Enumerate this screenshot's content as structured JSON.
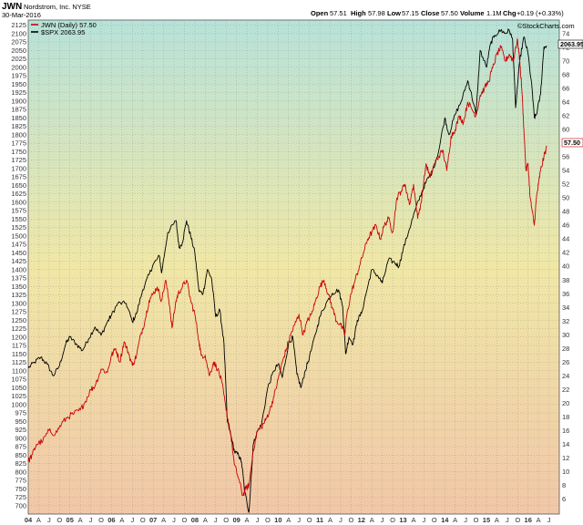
{
  "header": {
    "symbol": "JWN",
    "company": "Nordstrom, Inc.  NYSE",
    "date": "30-Mar-2016",
    "open_label": "Open",
    "open": "57.51",
    "high_label": "High",
    "high": "57.98",
    "low_label": "Low",
    "low": "57.15",
    "close_label": "Close",
    "close": "57.50",
    "volume_label": "Volume",
    "volume": "1.1M",
    "chg_label": "Chg",
    "chg": "+0.19 (+0.33%)",
    "brand": "©StockCharts.com"
  },
  "colors": {
    "bg_top": "#b7e2d9",
    "bg_mid": "#f0e7a6",
    "bg_bottom": "#f1c7a8",
    "jwn": "#cc0000",
    "spx": "#000000",
    "grid": "#8a8a8a"
  },
  "chart_data": {
    "type": "line",
    "legend": {
      "placement": "top-left",
      "entries": [
        "JWN (Daily) 57.50",
        "$SPX 2063.95"
      ]
    },
    "left_axis": {
      "label": "$SPX",
      "range": [
        675,
        2140
      ],
      "ticks": [
        700,
        725,
        750,
        775,
        800,
        825,
        850,
        875,
        900,
        925,
        950,
        975,
        1000,
        1025,
        1050,
        1075,
        1100,
        1125,
        1150,
        1175,
        1200,
        1225,
        1250,
        1275,
        1300,
        1325,
        1350,
        1375,
        1400,
        1425,
        1450,
        1475,
        1500,
        1525,
        1550,
        1575,
        1600,
        1625,
        1650,
        1675,
        1700,
        1725,
        1750,
        1775,
        1800,
        1825,
        1850,
        1875,
        1900,
        1925,
        1950,
        1975,
        2000,
        2025,
        2050,
        2075,
        2100,
        2125
      ]
    },
    "right_axis": {
      "label": "JWN",
      "range": [
        3.8,
        76
      ],
      "ticks": [
        6,
        8,
        10,
        12,
        14,
        16,
        18,
        20,
        22,
        24,
        26,
        28,
        30,
        32,
        34,
        36,
        38,
        40,
        42,
        44,
        46,
        48,
        50,
        52,
        54,
        56,
        58,
        60,
        62,
        64,
        66,
        68,
        70,
        72,
        74
      ]
    },
    "x_axis": {
      "range": [
        2004.0,
        2016.75
      ],
      "ticks": [
        {
          "t": 2004.0,
          "label": "04"
        },
        {
          "t": 2004.25,
          "label": "A"
        },
        {
          "t": 2004.5,
          "label": "J"
        },
        {
          "t": 2004.75,
          "label": "O"
        },
        {
          "t": 2005.0,
          "label": "05"
        },
        {
          "t": 2005.25,
          "label": "A"
        },
        {
          "t": 2005.5,
          "label": "J"
        },
        {
          "t": 2005.75,
          "label": "O"
        },
        {
          "t": 2006.0,
          "label": "06"
        },
        {
          "t": 2006.25,
          "label": "A"
        },
        {
          "t": 2006.5,
          "label": "J"
        },
        {
          "t": 2006.75,
          "label": "O"
        },
        {
          "t": 2007.0,
          "label": "07"
        },
        {
          "t": 2007.25,
          "label": "A"
        },
        {
          "t": 2007.5,
          "label": "J"
        },
        {
          "t": 2007.75,
          "label": "O"
        },
        {
          "t": 2008.0,
          "label": "08"
        },
        {
          "t": 2008.25,
          "label": "A"
        },
        {
          "t": 2008.5,
          "label": "J"
        },
        {
          "t": 2008.75,
          "label": "O"
        },
        {
          "t": 2009.0,
          "label": "09"
        },
        {
          "t": 2009.25,
          "label": "A"
        },
        {
          "t": 2009.5,
          "label": "J"
        },
        {
          "t": 2009.75,
          "label": "O"
        },
        {
          "t": 2010.0,
          "label": "10"
        },
        {
          "t": 2010.25,
          "label": "A"
        },
        {
          "t": 2010.5,
          "label": "J"
        },
        {
          "t": 2010.75,
          "label": "O"
        },
        {
          "t": 2011.0,
          "label": "11"
        },
        {
          "t": 2011.25,
          "label": "A"
        },
        {
          "t": 2011.5,
          "label": "J"
        },
        {
          "t": 2011.75,
          "label": "O"
        },
        {
          "t": 2012.0,
          "label": "12"
        },
        {
          "t": 2012.25,
          "label": "A"
        },
        {
          "t": 2012.5,
          "label": "J"
        },
        {
          "t": 2012.75,
          "label": "O"
        },
        {
          "t": 2013.0,
          "label": "13"
        },
        {
          "t": 2013.25,
          "label": "A"
        },
        {
          "t": 2013.5,
          "label": "J"
        },
        {
          "t": 2013.75,
          "label": "O"
        },
        {
          "t": 2014.0,
          "label": "14"
        },
        {
          "t": 2014.25,
          "label": "A"
        },
        {
          "t": 2014.5,
          "label": "J"
        },
        {
          "t": 2014.75,
          "label": "O"
        },
        {
          "t": 2015.0,
          "label": "15"
        },
        {
          "t": 2015.25,
          "label": "A"
        },
        {
          "t": 2015.5,
          "label": "J"
        },
        {
          "t": 2015.75,
          "label": "O"
        },
        {
          "t": 2016.0,
          "label": "16"
        },
        {
          "t": 2016.25,
          "label": "A"
        },
        {
          "t": 2016.5,
          "label": "J"
        }
      ]
    },
    "grid": true,
    "series": [
      {
        "name": "$SPX 2063.95",
        "axis": "left",
        "color": "#000000",
        "x": [
          2004.0,
          2004.15,
          2004.3,
          2004.45,
          2004.6,
          2004.75,
          2004.9,
          2005.0,
          2005.15,
          2005.3,
          2005.45,
          2005.6,
          2005.75,
          2005.9,
          2006.0,
          2006.15,
          2006.35,
          2006.5,
          2006.6,
          2006.75,
          2006.9,
          2007.0,
          2007.15,
          2007.2,
          2007.35,
          2007.55,
          2007.62,
          2007.7,
          2007.8,
          2007.9,
          2008.0,
          2008.1,
          2008.2,
          2008.3,
          2008.4,
          2008.5,
          2008.6,
          2008.7,
          2008.78,
          2008.88,
          2008.95,
          2009.05,
          2009.12,
          2009.2,
          2009.3,
          2009.4,
          2009.5,
          2009.6,
          2009.75,
          2009.9,
          2010.0,
          2010.1,
          2010.25,
          2010.35,
          2010.45,
          2010.55,
          2010.65,
          2010.75,
          2010.9,
          2011.0,
          2011.15,
          2011.3,
          2011.45,
          2011.55,
          2011.62,
          2011.7,
          2011.8,
          2011.9,
          2012.0,
          2012.15,
          2012.25,
          2012.4,
          2012.5,
          2012.65,
          2012.8,
          2012.9,
          2013.0,
          2013.15,
          2013.3,
          2013.45,
          2013.55,
          2013.7,
          2013.85,
          2014.0,
          2014.1,
          2014.25,
          2014.4,
          2014.55,
          2014.62,
          2014.75,
          2014.85,
          2015.0,
          2015.1,
          2015.2,
          2015.35,
          2015.45,
          2015.55,
          2015.63,
          2015.7,
          2015.8,
          2015.9,
          2016.0,
          2016.1,
          2016.15,
          2016.2,
          2016.3,
          2016.38,
          2016.45
        ],
        "y": [
          1108,
          1125,
          1140,
          1120,
          1085,
          1115,
          1180,
          1200,
          1180,
          1160,
          1195,
          1230,
          1205,
          1245,
          1265,
          1300,
          1300,
          1245,
          1270,
          1340,
          1385,
          1415,
          1440,
          1390,
          1510,
          1545,
          1465,
          1480,
          1545,
          1500,
          1450,
          1335,
          1330,
          1400,
          1375,
          1260,
          1280,
          1180,
          950,
          900,
          860,
          850,
          830,
          740,
          680,
          880,
          920,
          940,
          1050,
          1100,
          1120,
          1080,
          1180,
          1200,
          1090,
          1050,
          1100,
          1140,
          1210,
          1260,
          1300,
          1330,
          1340,
          1290,
          1150,
          1200,
          1180,
          1250,
          1270,
          1350,
          1400,
          1380,
          1360,
          1430,
          1420,
          1410,
          1460,
          1520,
          1580,
          1630,
          1660,
          1690,
          1750,
          1850,
          1800,
          1860,
          1900,
          1960,
          1930,
          1860,
          2050,
          2000,
          2070,
          2095,
          2110,
          2100,
          2110,
          2080,
          1880,
          2020,
          2090,
          2040,
          1930,
          1850,
          1860,
          1920,
          2060,
          2063
        ]
      },
      {
        "name": "JWN (Daily) 57.50",
        "axis": "right",
        "color": "#cc0000",
        "x": [
          2004.0,
          2004.1,
          2004.2,
          2004.35,
          2004.5,
          2004.65,
          2004.8,
          2004.95,
          2005.1,
          2005.25,
          2005.35,
          2005.5,
          2005.6,
          2005.75,
          2005.9,
          2006.0,
          2006.1,
          2006.2,
          2006.3,
          2006.4,
          2006.5,
          2006.6,
          2006.7,
          2006.8,
          2006.9,
          2007.0,
          2007.1,
          2007.2,
          2007.3,
          2007.4,
          2007.45,
          2007.55,
          2007.6,
          2007.7,
          2007.8,
          2007.9,
          2008.0,
          2008.1,
          2008.15,
          2008.25,
          2008.35,
          2008.45,
          2008.55,
          2008.65,
          2008.75,
          2008.85,
          2008.95,
          2009.05,
          2009.15,
          2009.22,
          2009.3,
          2009.4,
          2009.5,
          2009.6,
          2009.7,
          2009.8,
          2009.9,
          2010.0,
          2010.1,
          2010.2,
          2010.3,
          2010.4,
          2010.5,
          2010.6,
          2010.7,
          2010.8,
          2010.9,
          2011.0,
          2011.1,
          2011.2,
          2011.3,
          2011.4,
          2011.5,
          2011.6,
          2011.65,
          2011.75,
          2011.85,
          2011.95,
          2012.05,
          2012.15,
          2012.25,
          2012.35,
          2012.45,
          2012.55,
          2012.65,
          2012.75,
          2012.85,
          2012.95,
          2013.05,
          2013.15,
          2013.25,
          2013.35,
          2013.45,
          2013.55,
          2013.65,
          2013.75,
          2013.85,
          2013.95,
          2014.05,
          2014.15,
          2014.25,
          2014.35,
          2014.45,
          2014.55,
          2014.65,
          2014.75,
          2014.85,
          2014.95,
          2015.05,
          2015.15,
          2015.25,
          2015.35,
          2015.45,
          2015.55,
          2015.65,
          2015.7,
          2015.75,
          2015.8,
          2015.85,
          2015.9,
          2015.95,
          2016.0,
          2016.05,
          2016.1,
          2016.15,
          2016.2,
          2016.25,
          2016.3,
          2016.38,
          2016.45
        ],
        "y": [
          11.5,
          12.5,
          14,
          14.5,
          16,
          15.5,
          17,
          18,
          18.5,
          19,
          20,
          22,
          22.5,
          25,
          24.5,
          27,
          28,
          26,
          29,
          27.5,
          25.5,
          27,
          30,
          32,
          35,
          36,
          37,
          35,
          38,
          34,
          31,
          35,
          36,
          37,
          38,
          35,
          33,
          29,
          27,
          27,
          24,
          26,
          25,
          23,
          19,
          16,
          11,
          9,
          6.5,
          7.5,
          8,
          13,
          16,
          16.5,
          17.5,
          19,
          21,
          23.5,
          26,
          28,
          30,
          31.5,
          33,
          30,
          32,
          33,
          35,
          37,
          38,
          36,
          34,
          32,
          31.5,
          30,
          33,
          36,
          38,
          40,
          42,
          44,
          45,
          46,
          44,
          46,
          47,
          45,
          50,
          51,
          52,
          49,
          52,
          47,
          50,
          55,
          53,
          55,
          56,
          57,
          54,
          59,
          60,
          62,
          61,
          64,
          63,
          62,
          65,
          66,
          67,
          69,
          71,
          72,
          70,
          71,
          70,
          72,
          73,
          70,
          66,
          60,
          54,
          55,
          50,
          48,
          46,
          50,
          52,
          54,
          56,
          57.5
        ]
      }
    ]
  }
}
